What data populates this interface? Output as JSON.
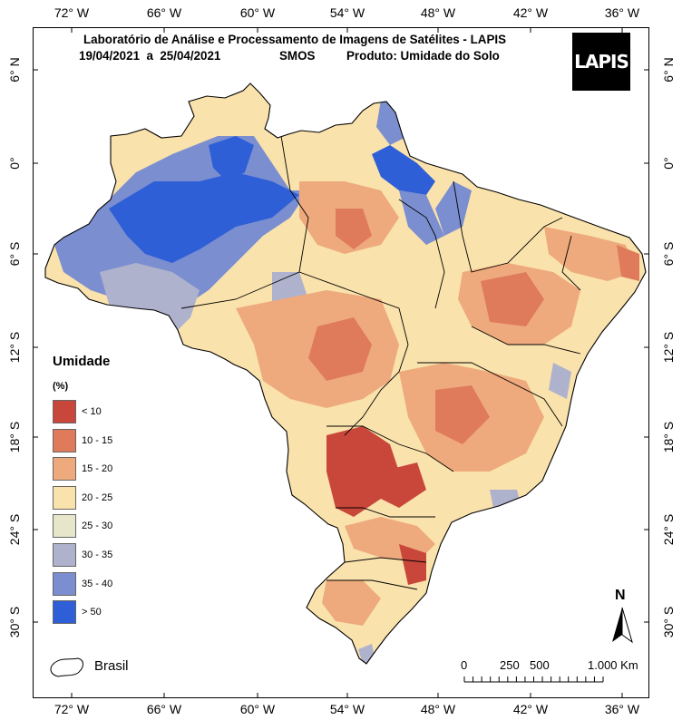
{
  "header": {
    "title": "Laboratório de Análise e Processamento de Imagens de Satélites - LAPIS",
    "period": "19/04/2021  a  25/04/2021",
    "sensor": "SMOS",
    "product": "Produto: Umidade do Solo",
    "logo_text": "LAPIS"
  },
  "graticule": {
    "longitudes": [
      "72° W",
      "66° W",
      "60° W",
      "54° W",
      "48° W",
      "42° W",
      "36° W"
    ],
    "latitudes": [
      "6° N",
      "0°",
      "6° S",
      "12° S",
      "18° S",
      "24° S",
      "30° S"
    ]
  },
  "legend": {
    "title": "Umidade",
    "unit": "(%)",
    "classes": [
      {
        "label": "< 10",
        "color": "#c9463a"
      },
      {
        "label": "10 - 15",
        "color": "#df7b5b"
      },
      {
        "label": "15 - 20",
        "color": "#eeaa7c"
      },
      {
        "label": "20 - 25",
        "color": "#fae2ac"
      },
      {
        "label": "25 - 30",
        "color": "#e8e6ca"
      },
      {
        "label": "30 - 35",
        "color": "#aeb2cc"
      },
      {
        "label": "35 - 40",
        "color": "#7b8ed0"
      },
      {
        "label": "> 50",
        "color": "#2e5fd6"
      }
    ]
  },
  "boundary_legend": {
    "label": "Brasil"
  },
  "scale_bar": {
    "ticks": [
      "0",
      "250",
      "500",
      "1.000 Km"
    ]
  },
  "north_arrow": {
    "label": "N"
  }
}
